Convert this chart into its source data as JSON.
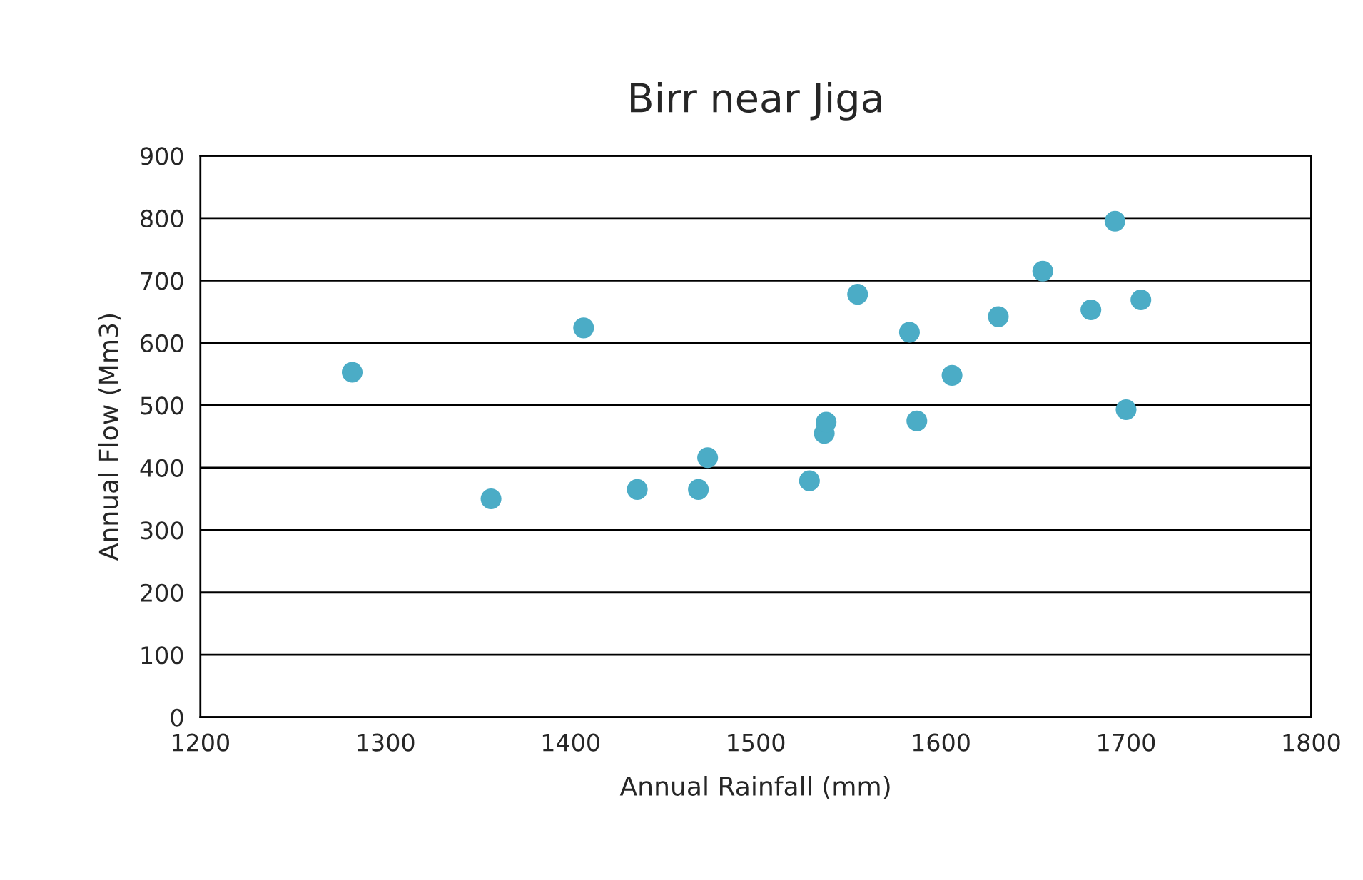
{
  "chart_data": {
    "type": "scatter",
    "title": "Birr near Jiga",
    "xlabel": "Annual Rainfall (mm)",
    "ylabel": "Annual Flow (Mm3)",
    "x": [
      1282,
      1357,
      1407,
      1436,
      1469,
      1474,
      1529,
      1537,
      1538,
      1555,
      1583,
      1587,
      1606,
      1631,
      1655,
      1681,
      1694,
      1700,
      1708
    ],
    "series": [
      {
        "color": "#4bacc6",
        "values": [
          553,
          350,
          624,
          365,
          365,
          416,
          379,
          455,
          473,
          678,
          617,
          475,
          548,
          642,
          715,
          653,
          795,
          493,
          669
        ]
      }
    ],
    "xlim": [
      1200,
      1800
    ],
    "xticks": [
      1200,
      1300,
      1400,
      1500,
      1600,
      1700,
      1800
    ],
    "ylim": [
      0,
      900
    ],
    "yticks": [
      0,
      100,
      200,
      300,
      400,
      500,
      600,
      700,
      800,
      900
    ],
    "grid": "y",
    "marker": "circle"
  }
}
